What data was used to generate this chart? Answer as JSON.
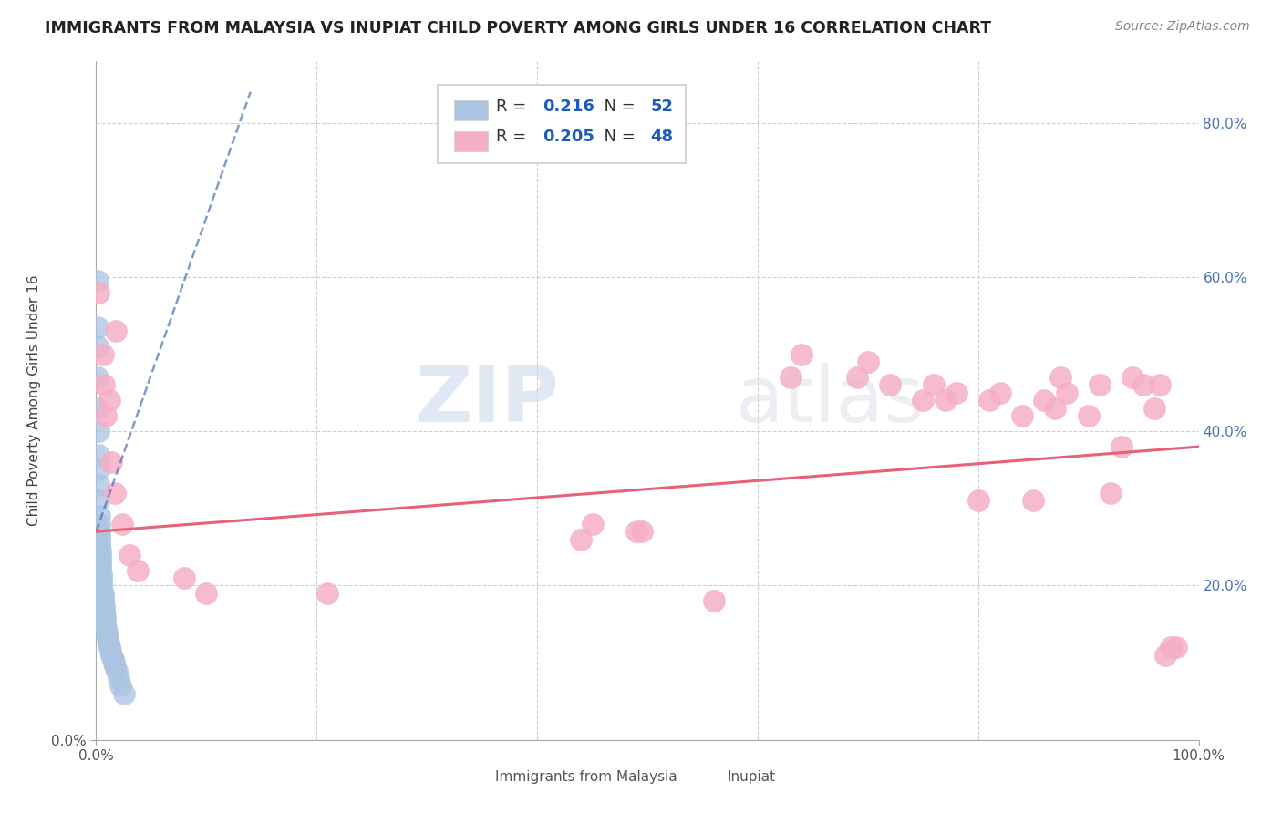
{
  "title": "IMMIGRANTS FROM MALAYSIA VS INUPIAT CHILD POVERTY AMONG GIRLS UNDER 16 CORRELATION CHART",
  "source": "Source: ZipAtlas.com",
  "ylabel": "Child Poverty Among Girls Under 16",
  "legend1_label": "Immigrants from Malaysia",
  "legend2_label": "Inupiat",
  "r1": 0.216,
  "n1": 52,
  "r2": 0.205,
  "n2": 48,
  "blue_color": "#aac4e2",
  "pink_color": "#f5afc6",
  "trend_blue_color": "#4a72b8",
  "trend_pink_color": "#e8607a",
  "background_color": "#ffffff",
  "xlim": [
    0.0,
    1.0
  ],
  "ylim": [
    0.0,
    0.88
  ],
  "blue_dots_x": [
    0.001,
    0.001,
    0.001,
    0.001,
    0.001,
    0.002,
    0.002,
    0.002,
    0.002,
    0.002,
    0.003,
    0.003,
    0.003,
    0.003,
    0.003,
    0.003,
    0.003,
    0.004,
    0.004,
    0.004,
    0.004,
    0.004,
    0.004,
    0.005,
    0.005,
    0.005,
    0.005,
    0.005,
    0.006,
    0.006,
    0.006,
    0.007,
    0.007,
    0.007,
    0.008,
    0.008,
    0.008,
    0.009,
    0.009,
    0.01,
    0.01,
    0.011,
    0.012,
    0.013,
    0.014,
    0.015,
    0.016,
    0.017,
    0.019,
    0.02,
    0.022,
    0.025
  ],
  "blue_dots_y": [
    0.595,
    0.535,
    0.51,
    0.47,
    0.43,
    0.4,
    0.37,
    0.35,
    0.33,
    0.31,
    0.29,
    0.28,
    0.27,
    0.265,
    0.26,
    0.255,
    0.25,
    0.245,
    0.24,
    0.235,
    0.23,
    0.225,
    0.22,
    0.215,
    0.21,
    0.205,
    0.2,
    0.195,
    0.19,
    0.185,
    0.18,
    0.175,
    0.17,
    0.165,
    0.16,
    0.155,
    0.15,
    0.145,
    0.14,
    0.135,
    0.13,
    0.125,
    0.12,
    0.115,
    0.11,
    0.105,
    0.1,
    0.095,
    0.09,
    0.08,
    0.07,
    0.06
  ],
  "pink_dots_x": [
    0.002,
    0.006,
    0.007,
    0.009,
    0.012,
    0.014,
    0.017,
    0.018,
    0.024,
    0.03,
    0.038,
    0.08,
    0.1,
    0.21,
    0.44,
    0.45,
    0.49,
    0.495,
    0.56,
    0.63,
    0.64,
    0.69,
    0.7,
    0.72,
    0.75,
    0.76,
    0.77,
    0.78,
    0.8,
    0.81,
    0.82,
    0.84,
    0.85,
    0.86,
    0.87,
    0.875,
    0.88,
    0.9,
    0.91,
    0.92,
    0.93,
    0.94,
    0.95,
    0.96,
    0.965,
    0.97,
    0.975,
    0.98
  ],
  "pink_dots_y": [
    0.58,
    0.5,
    0.46,
    0.42,
    0.44,
    0.36,
    0.32,
    0.53,
    0.28,
    0.24,
    0.22,
    0.21,
    0.19,
    0.19,
    0.26,
    0.28,
    0.27,
    0.27,
    0.18,
    0.47,
    0.5,
    0.47,
    0.49,
    0.46,
    0.44,
    0.46,
    0.44,
    0.45,
    0.31,
    0.44,
    0.45,
    0.42,
    0.31,
    0.44,
    0.43,
    0.47,
    0.45,
    0.42,
    0.46,
    0.32,
    0.38,
    0.47,
    0.46,
    0.43,
    0.46,
    0.11,
    0.12,
    0.12
  ],
  "watermark_zip": "ZIP",
  "watermark_atlas": "atlas",
  "grid_color": "#d0d0d0",
  "right_y_ticks": [
    0.2,
    0.4,
    0.6,
    0.8
  ],
  "right_y_labels": [
    "20.0%",
    "40.0%",
    "60.0%",
    "80.0%"
  ],
  "blue_trend_x": [
    0.0,
    0.14
  ],
  "blue_trend_y": [
    0.27,
    0.84
  ],
  "pink_trend_x": [
    0.0,
    1.0
  ],
  "pink_trend_y": [
    0.27,
    0.38
  ]
}
